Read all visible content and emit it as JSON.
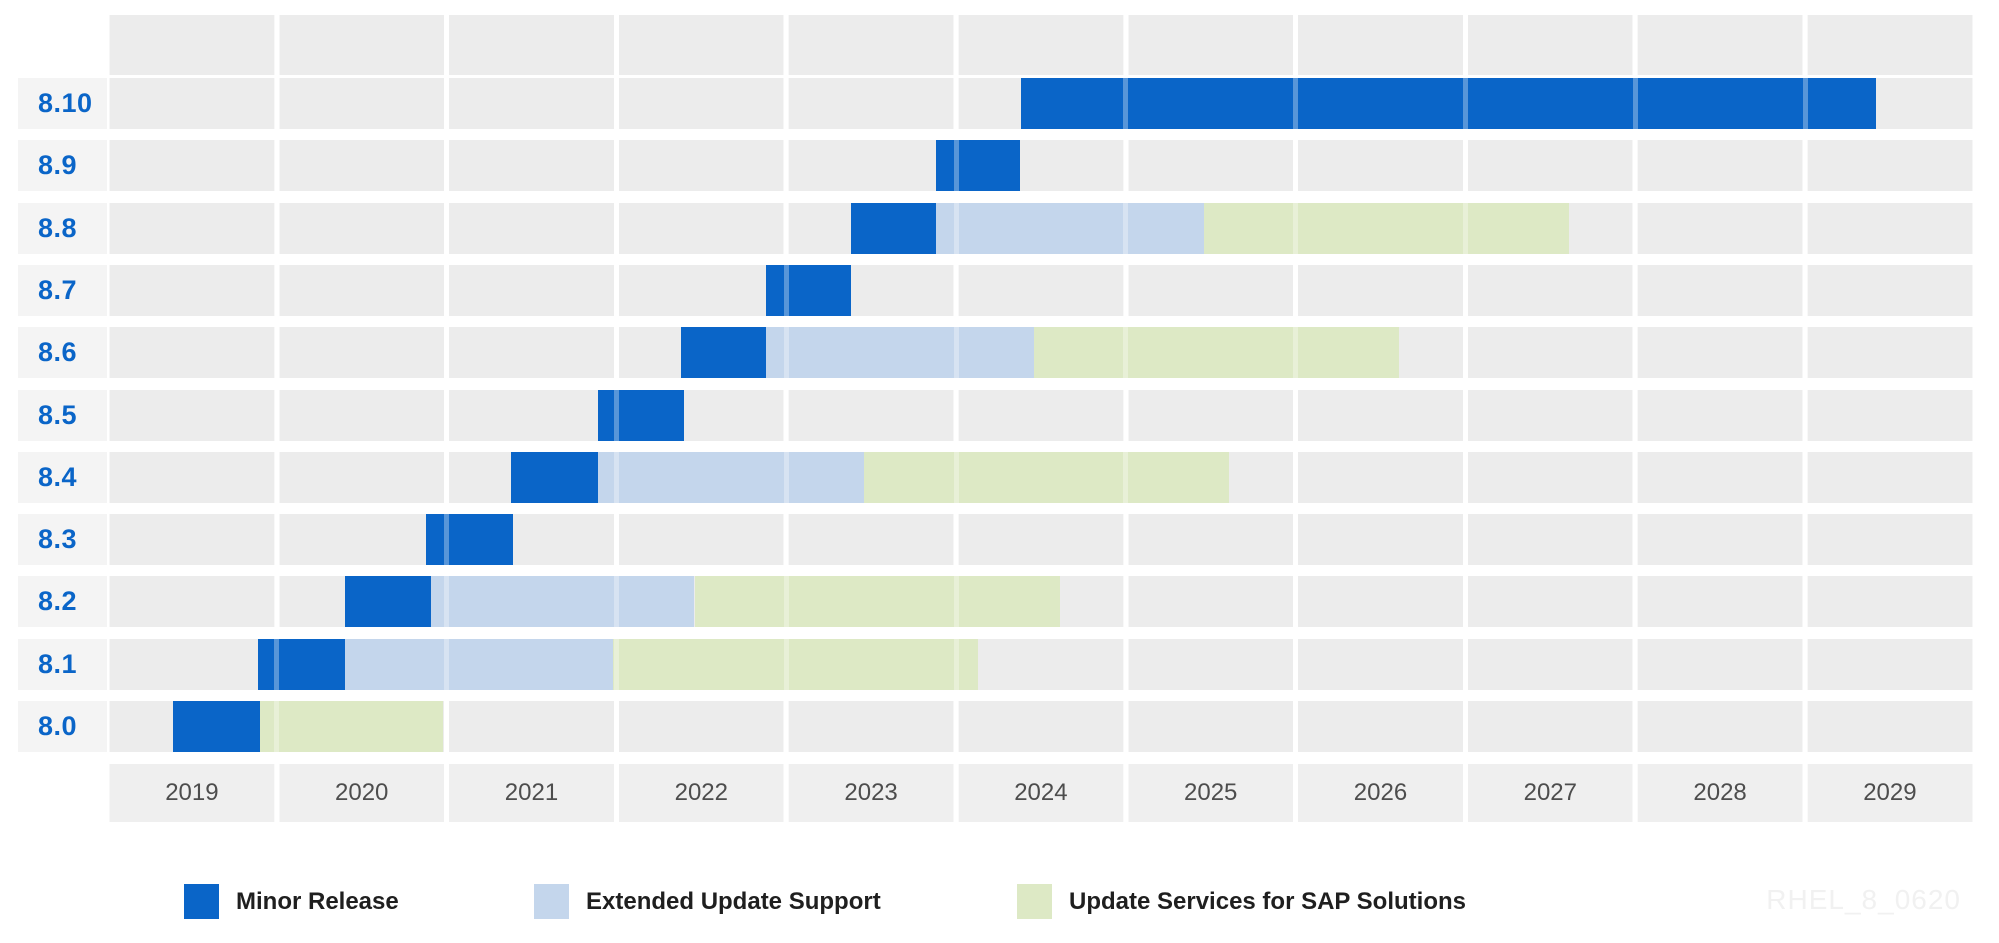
{
  "watermark": "RHEL_8_0620",
  "colors": {
    "minor_release": "#0a65c8",
    "extended_update_support": "#c4d6ec",
    "update_services_sap": "#dde9c5",
    "version_label": "#0a65c8",
    "row_band": "#ececec",
    "label_band": "#f4f4f4",
    "axis_band": "#efefef",
    "year_label": "#4d4d4d",
    "legend_text": "#1f1f1f",
    "watermark_color": "#f1f1f1"
  },
  "legend": [
    {
      "id": "minor_release",
      "label": "Minor Release"
    },
    {
      "id": "extended_update_support",
      "label": "Extended Update Support"
    },
    {
      "id": "update_services_sap",
      "label": "Update Services for SAP Solutions"
    }
  ],
  "chart_data": {
    "type": "gantt",
    "title": "",
    "x_axis": {
      "years": [
        "2019",
        "2020",
        "2021",
        "2022",
        "2023",
        "2024",
        "2025",
        "2026",
        "2027",
        "2028",
        "2029"
      ],
      "range": [
        2019,
        2030
      ]
    },
    "legend_position": "bottom",
    "grid": "vertical-year-gridlines",
    "rows": [
      {
        "version": "8.10",
        "segments": [
          {
            "type": "minor_release",
            "start": 2024.38,
            "end": 2029.42
          }
        ]
      },
      {
        "version": "8.9",
        "segments": [
          {
            "type": "minor_release",
            "start": 2023.88,
            "end": 2024.38
          }
        ]
      },
      {
        "version": "8.8",
        "segments": [
          {
            "type": "minor_release",
            "start": 2023.38,
            "end": 2023.88
          },
          {
            "type": "extended_update_support",
            "start": 2023.88,
            "end": 2025.46
          },
          {
            "type": "update_services_sap",
            "start": 2025.46,
            "end": 2027.61
          }
        ]
      },
      {
        "version": "8.7",
        "segments": [
          {
            "type": "minor_release",
            "start": 2022.88,
            "end": 2023.38
          }
        ]
      },
      {
        "version": "8.6",
        "segments": [
          {
            "type": "minor_release",
            "start": 2022.38,
            "end": 2022.88
          },
          {
            "type": "extended_update_support",
            "start": 2022.88,
            "end": 2024.46
          },
          {
            "type": "update_services_sap",
            "start": 2024.46,
            "end": 2026.61
          }
        ]
      },
      {
        "version": "8.5",
        "segments": [
          {
            "type": "minor_release",
            "start": 2021.89,
            "end": 2022.4
          }
        ]
      },
      {
        "version": "8.4",
        "segments": [
          {
            "type": "minor_release",
            "start": 2021.38,
            "end": 2021.89
          },
          {
            "type": "extended_update_support",
            "start": 2021.89,
            "end": 2023.46
          },
          {
            "type": "update_services_sap",
            "start": 2023.46,
            "end": 2025.61
          }
        ]
      },
      {
        "version": "8.3",
        "segments": [
          {
            "type": "minor_release",
            "start": 2020.88,
            "end": 2021.39
          }
        ]
      },
      {
        "version": "8.2",
        "segments": [
          {
            "type": "minor_release",
            "start": 2020.4,
            "end": 2020.91
          },
          {
            "type": "extended_update_support",
            "start": 2020.91,
            "end": 2022.46
          },
          {
            "type": "update_services_sap",
            "start": 2022.46,
            "end": 2024.61
          }
        ]
      },
      {
        "version": "8.1",
        "segments": [
          {
            "type": "minor_release",
            "start": 2019.89,
            "end": 2020.4
          },
          {
            "type": "extended_update_support",
            "start": 2020.4,
            "end": 2021.98
          },
          {
            "type": "update_services_sap",
            "start": 2021.98,
            "end": 2024.13
          }
        ]
      },
      {
        "version": "8.0",
        "segments": [
          {
            "type": "minor_release",
            "start": 2019.39,
            "end": 2019.9
          },
          {
            "type": "update_services_sap",
            "start": 2019.9,
            "end": 2020.98
          }
        ]
      }
    ]
  }
}
